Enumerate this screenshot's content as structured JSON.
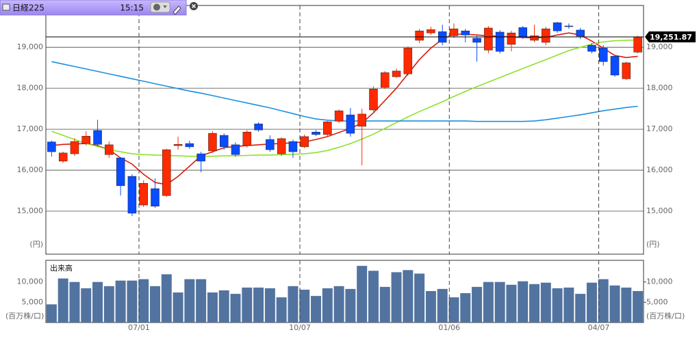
{
  "header": {
    "title": "日経225",
    "time": "15:15"
  },
  "chart_data": [
    {
      "type": "candlestick",
      "open": [
        16690,
        16220,
        16400,
        16650,
        16970,
        16380,
        16300,
        15850,
        15150,
        15550,
        15380,
        16600,
        16650,
        16400,
        16470,
        16850,
        16620,
        16600,
        17130,
        16750,
        16400,
        16700,
        16570,
        16930,
        16870,
        17200,
        17350,
        17070,
        17470,
        18020,
        18280,
        18350,
        19170,
        19350,
        19380,
        19280,
        19400,
        19220,
        18930,
        19370,
        19070,
        19480,
        19170,
        19120,
        19600,
        19520,
        19420,
        19050,
        18980,
        18780,
        18230,
        18880
      ],
      "high": [
        16720,
        16450,
        16780,
        16950,
        17230,
        16700,
        16320,
        15900,
        15750,
        15800,
        16520,
        16820,
        16720,
        16450,
        16950,
        16900,
        16680,
        16980,
        17170,
        16850,
        16800,
        16750,
        16870,
        16980,
        17200,
        17480,
        17520,
        17500,
        18050,
        18420,
        18480,
        19020,
        19450,
        19500,
        19550,
        19580,
        19450,
        19280,
        19520,
        19420,
        19400,
        19520,
        19550,
        19500,
        19620,
        19580,
        19470,
        19100,
        19050,
        18800,
        18650,
        19280
      ],
      "low": [
        16330,
        16180,
        16350,
        16600,
        16580,
        16300,
        15380,
        14880,
        15100,
        15080,
        15350,
        16500,
        16520,
        15950,
        16420,
        16500,
        16330,
        16550,
        16940,
        16450,
        16350,
        16300,
        16540,
        16830,
        16820,
        17150,
        16820,
        16120,
        17430,
        17980,
        18250,
        18300,
        19100,
        19300,
        19050,
        19230,
        19120,
        18650,
        18850,
        18850,
        18900,
        19200,
        19120,
        19050,
        19350,
        19450,
        19200,
        18850,
        18550,
        18280,
        18200,
        18850
      ],
      "close": [
        16450,
        16420,
        16700,
        16830,
        16630,
        16620,
        15620,
        14950,
        15680,
        15120,
        16500,
        16630,
        16570,
        16220,
        16900,
        16570,
        16380,
        16930,
        16980,
        16500,
        16770,
        16450,
        16820,
        16870,
        17180,
        17450,
        16900,
        17370,
        17980,
        18380,
        18420,
        18980,
        19400,
        19430,
        19120,
        19450,
        19300,
        19120,
        19470,
        18900,
        19350,
        19250,
        19280,
        19450,
        19400,
        19510,
        19270,
        18900,
        18650,
        18320,
        18620,
        19251.87
      ],
      "up_color": "#ff2a00",
      "down_color": "#0a4cff",
      "series": [
        {
          "color": "#d81c0c",
          "values": [
            16600,
            16630,
            16640,
            16650,
            16600,
            16500,
            16300,
            16150,
            15900,
            15700,
            15650,
            15850,
            16100,
            16350,
            16450,
            16550,
            16580,
            16600,
            16620,
            16640,
            16650,
            16670,
            16690,
            16750,
            16820,
            16920,
            17020,
            17150,
            17400,
            17700,
            18000,
            18350,
            18700,
            18980,
            19200,
            19320,
            19320,
            19300,
            19280,
            19270,
            19250,
            19240,
            19230,
            19240,
            19300,
            19350,
            19300,
            19150,
            18980,
            18800,
            18750,
            18780
          ]
        },
        {
          "color": "#8be22a",
          "values": [
            16950,
            16850,
            16750,
            16650,
            16580,
            16500,
            16450,
            16400,
            16380,
            16370,
            16360,
            16350,
            16340,
            16340,
            16340,
            16350,
            16350,
            16360,
            16370,
            16370,
            16380,
            16390,
            16400,
            16430,
            16480,
            16560,
            16650,
            16760,
            16880,
            17020,
            17160,
            17300,
            17430,
            17550,
            17670,
            17800,
            17920,
            18040,
            18150,
            18260,
            18370,
            18480,
            18590,
            18700,
            18810,
            18920,
            19000,
            19080,
            19130,
            19160,
            19170,
            19180
          ]
        },
        {
          "color": "#1a8fe0",
          "values": [
            18650,
            18590,
            18530,
            18470,
            18410,
            18350,
            18290,
            18230,
            18170,
            18110,
            18050,
            17990,
            17930,
            17880,
            17820,
            17760,
            17700,
            17640,
            17580,
            17520,
            17450,
            17380,
            17310,
            17250,
            17220,
            17200,
            17200,
            17200,
            17200,
            17200,
            17200,
            17200,
            17200,
            17200,
            17200,
            17200,
            17200,
            17190,
            17190,
            17190,
            17190,
            17190,
            17200,
            17230,
            17270,
            17310,
            17350,
            17400,
            17450,
            17490,
            17530,
            17560
          ]
        }
      ],
      "last": {
        "value": 19251.87,
        "label": "19,251.87"
      },
      "ylim": [
        13950,
        20020
      ],
      "yticks": [
        {
          "value": 15000,
          "label": "15,000"
        },
        {
          "value": 16000,
          "label": "16,000"
        },
        {
          "value": 17000,
          "label": "17,000"
        },
        {
          "value": 18000,
          "label": "18,000"
        },
        {
          "value": 19000,
          "label": "19,000"
        }
      ],
      "unit": "(円)"
    },
    {
      "type": "bar",
      "title": "出来高",
      "color": "#52739f",
      "categories": [
        null,
        null,
        null,
        null,
        null,
        null,
        null,
        null,
        "07/01",
        null,
        null,
        null,
        null,
        null,
        null,
        null,
        null,
        null,
        null,
        null,
        null,
        null,
        "10/07",
        null,
        null,
        null,
        null,
        null,
        null,
        null,
        null,
        null,
        null,
        null,
        null,
        "01/06",
        null,
        null,
        null,
        null,
        null,
        null,
        null,
        null,
        null,
        null,
        null,
        null,
        "04/07",
        null,
        null,
        null
      ],
      "values": [
        4480,
        10860,
        10000,
        8450,
        10000,
        8970,
        10340,
        10340,
        10690,
        8970,
        11900,
        7410,
        10690,
        10690,
        7410,
        7930,
        7070,
        8620,
        8620,
        8450,
        6210,
        8970,
        8100,
        6550,
        8450,
        8970,
        8280,
        13970,
        12760,
        8790,
        12410,
        12930,
        12070,
        7760,
        8280,
        6210,
        7240,
        8790,
        10000,
        10000,
        9310,
        10170,
        9480,
        9830,
        8450,
        8620,
        7070,
        9830,
        10690,
        9140,
        8620,
        7760
      ],
      "ylim": [
        0,
        15340
      ],
      "yticks": [
        {
          "value": 5000,
          "label": "5,000"
        },
        {
          "value": 10000,
          "label": "10,000"
        }
      ],
      "unit": "(百万株/口)"
    }
  ]
}
